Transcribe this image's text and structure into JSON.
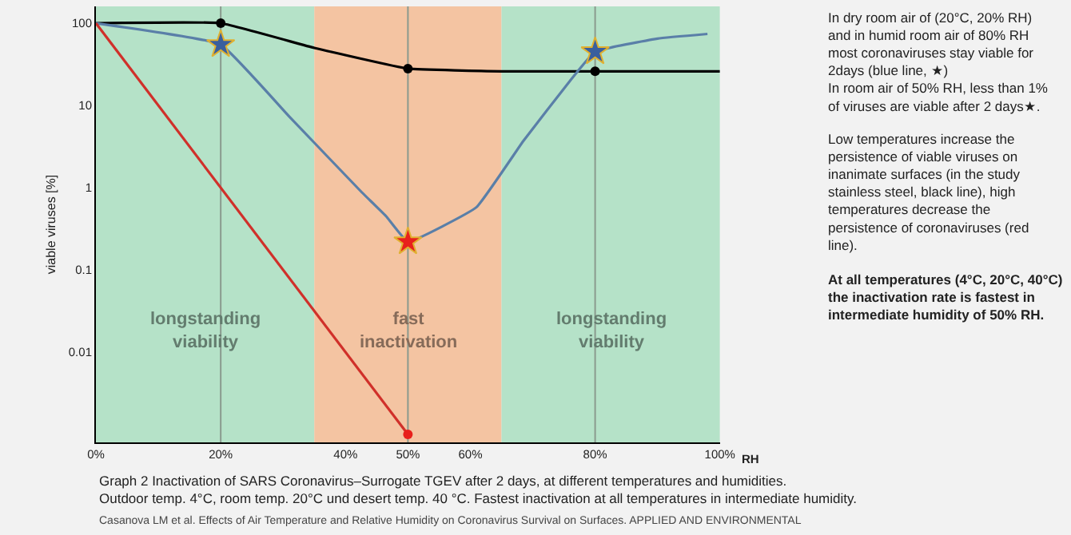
{
  "chart_data": {
    "type": "line",
    "log": "y",
    "grid": false,
    "xlabel": "RH",
    "ylabel": "viable viruses [%]",
    "xlim": [
      0,
      100
    ],
    "xticks": [
      {
        "value": 0,
        "label": "0%"
      },
      {
        "value": 20,
        "label": "20%"
      },
      {
        "value": 40,
        "label": "40%"
      },
      {
        "value": 50,
        "label": "50%"
      },
      {
        "value": 60,
        "label": "60%"
      },
      {
        "value": 80,
        "label": "80%"
      },
      {
        "value": 100,
        "label": "100%"
      }
    ],
    "ylim": [
      0.0008,
      160
    ],
    "yticks": [
      {
        "value": 0.01,
        "label": "0.01"
      },
      {
        "value": 0.1,
        "label": "0.1"
      },
      {
        "value": 1,
        "label": "1"
      },
      {
        "value": 10,
        "label": "10"
      },
      {
        "value": 100,
        "label": "100"
      }
    ],
    "bands": [
      {
        "axis": "x",
        "from": 0,
        "to": 35,
        "color": "#b5e2c8",
        "label": "longstanding\nviability"
      },
      {
        "axis": "x",
        "from": 35,
        "to": 65,
        "color": "#f4c4a2",
        "label": "fast\ninactivation"
      },
      {
        "axis": "x",
        "from": 65,
        "to": 100,
        "color": "#b5e2c8",
        "label": "longstanding\nviability"
      }
    ],
    "ref_lines": [
      {
        "axis": "x",
        "value": 20,
        "color": "#8a9a8e"
      },
      {
        "axis": "x",
        "value": 50,
        "color": "#8a9a8e"
      },
      {
        "axis": "x",
        "value": 80,
        "color": "#8a9a8e"
      }
    ],
    "series": [
      {
        "color": "#000000",
        "marker": "none",
        "x": [
          0,
          20,
          35,
          50,
          65,
          80,
          100
        ],
        "values": [
          100,
          100,
          50,
          28,
          26,
          26,
          26
        ]
      },
      {
        "color": "#5a7fa8",
        "marker": "none",
        "x": [
          0,
          20,
          31,
          42.6,
          46.5,
          50,
          61,
          68.5,
          76,
          80,
          90,
          98
        ],
        "values": [
          100,
          55,
          7.3,
          0.88,
          0.45,
          0.22,
          0.58,
          3.7,
          20,
          45,
          65,
          74
        ]
      },
      {
        "color": "#d0302a",
        "marker": "none",
        "x": [
          0,
          50
        ],
        "values": [
          100,
          0.001
        ]
      },
      {
        "type": "scatter",
        "color": "#000000",
        "marker": "circle",
        "x": [
          20,
          50,
          80
        ],
        "values": [
          100,
          28,
          26
        ]
      },
      {
        "type": "scatter",
        "color": "#3a5f9e",
        "marker": "star",
        "x": [
          20,
          80
        ],
        "values": [
          55,
          45
        ]
      },
      {
        "type": "scatter",
        "color": "#e8201c",
        "marker": "star",
        "x": [
          50
        ],
        "values": [
          0.22
        ]
      },
      {
        "type": "scatter",
        "color": "#e8201c",
        "marker": "circle",
        "x": [
          50
        ],
        "values": [
          0.001
        ]
      }
    ],
    "annotations": [
      "In dry room air of (20°C, 20% RH)\nand in humid room air of 80% RH\nmost coronaviruses stay viable for\n2days (blue line, ★)\nIn room air of 50% RH, less than 1%\nof viruses are viable after 2 days★.",
      "Low temperatures increase the\npersistence of viable viruses on\ninanimate surfaces (in the study\nstainless steel, black line), high\ntemperatures decrease the\npersistence of coronaviruses (red\nline).",
      "At all temperatures (4°C, 20°C, 40°C)\nthe inactivation rate is fastest in\nintermediate humidity of 50% RH.",
      "Graph 2 Inactivation of SARS Coronavirus–Surrogate TGEV after 2 days, at different temperatures and humidities.\nOutdoor temp. 4°C, room temp. 20°C und desert temp. 40 °C. Fastest inactivation at all temperatures in intermediate humidity.",
      "Casanova LM et al. Effects of Air Temperature and Relative Humidity on Coronavirus Survival on Surfaces. APPLIED AND ENVIRONMENTAL"
    ]
  }
}
